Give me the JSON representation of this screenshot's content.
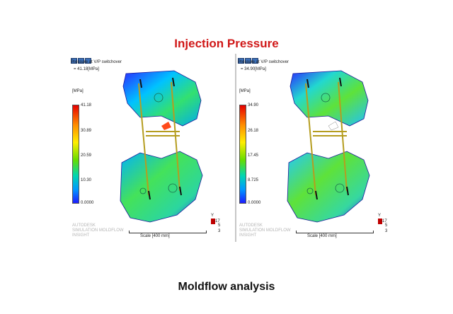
{
  "title": "Injection Pressure",
  "footer": "Moldflow analysis",
  "panels": [
    {
      "caption": "Pressure at V/P switchover",
      "max_label": "= 41.18[MPa]",
      "unit": "[MPa]",
      "ticks": [
        "41.18",
        "30.89",
        "20.59",
        "10.30",
        "0.0000"
      ],
      "scale": "Scale [400 mm]",
      "logo": [
        "AUTODESK",
        "SIMULATION MOLDFLOW",
        "INSIGHT"
      ],
      "triad": {
        "label": "Y",
        "v1": "-17",
        "v2": "5",
        "v3": "3"
      }
    },
    {
      "caption": "Pressure at V/P switchover",
      "max_label": "= 34.90[MPa]",
      "unit": "[MPa]",
      "ticks": [
        "34.90",
        "26.18",
        "17.45",
        "8.725",
        "0.0000"
      ],
      "scale": "Scale [400 mm]",
      "logo": [
        "AUTODESK",
        "SIMULATION MOLDFLOW",
        "INSIGHT"
      ],
      "triad": {
        "label": "Y",
        "v1": "-17",
        "v2": "5",
        "v3": "3"
      }
    }
  ],
  "colors": {
    "title": "#d01818",
    "high": "#e60000",
    "mid": "#66dd00",
    "low": "#1c1cff"
  }
}
